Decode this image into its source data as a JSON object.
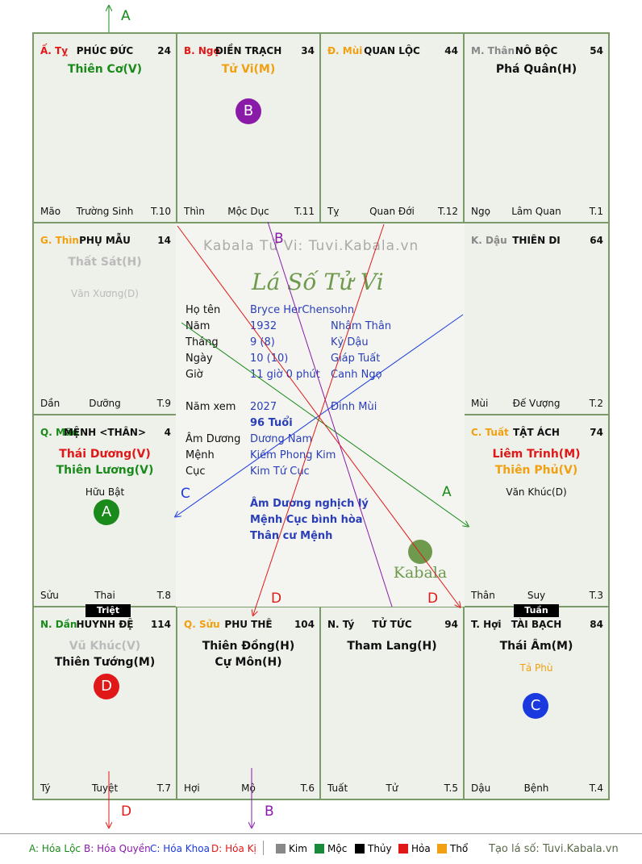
{
  "colors": {
    "hoa_loc": "#1a8a1a",
    "hoa_quyen": "#8a1aa8",
    "hoa_khoa": "#1a3ae0",
    "hoa_ki": "#e01818",
    "kim": "#888888",
    "moc": "#1a8a3a",
    "thuy": "#000000",
    "hoa": "#e01818",
    "tho": "#f0a010"
  },
  "watermark": "Kabala Tử Vi: Tuvi.Kabala.vn",
  "center_title": "Lá Số Tử Vi",
  "kabala_logo": "Kabala",
  "cells": [
    {
      "id": "ty",
      "branch": "Ấ. Tỵ",
      "branch_color": "#e01818",
      "name": "PHÚC ĐỨC",
      "age": "24",
      "stars": [
        {
          "text": "Thiên Cơ(V)",
          "color": "#1a8a1a"
        }
      ],
      "minors": [],
      "footer_left": "Mão",
      "footer_center": "Trường Sinh",
      "footer_right": "T.10"
    },
    {
      "id": "ngo",
      "branch": "B. Ngọ",
      "branch_color": "#e01818",
      "name": "ĐIỀN TRẠCH",
      "age": "34",
      "stars": [
        {
          "text": "Tử Vi(M)",
          "color": "#f0a010"
        }
      ],
      "minors": [],
      "footer_left": "Thìn",
      "footer_center": "Mộc Dục",
      "footer_right": "T.11"
    },
    {
      "id": "mui",
      "branch": "Đ. Mùi",
      "branch_color": "#f0a010",
      "name": "QUAN LỘC",
      "age": "44",
      "stars": [],
      "minors": [],
      "footer_left": "Tỵ",
      "footer_center": "Quan Đới",
      "footer_right": "T.12"
    },
    {
      "id": "than",
      "branch": "M. Thân",
      "branch_color": "#888888",
      "name": "NÔ BỘC",
      "age": "54",
      "stars": [
        {
          "text": "Phá Quân(H)",
          "color": "#111111"
        }
      ],
      "minors": [],
      "footer_left": "Ngọ",
      "footer_center": "Lâm Quan",
      "footer_right": "T.1"
    },
    {
      "id": "thin",
      "branch": "G. Thìn",
      "branch_color": "#f0a010",
      "name": "PHỤ MẪU",
      "age": "14",
      "stars": [
        {
          "text": "Thất Sát(H)",
          "color": "#bbbbbb"
        }
      ],
      "minors": [
        {
          "text": "Văn Xương(D)",
          "color": "#bbbbbb"
        }
      ],
      "footer_left": "Dần",
      "footer_center": "Dưỡng",
      "footer_right": "T.9"
    },
    {
      "id": "dau",
      "branch": "K. Dậu",
      "branch_color": "#888888",
      "name": "THIÊN DI",
      "age": "64",
      "stars": [],
      "minors": [],
      "footer_left": "Mùi",
      "footer_center": "Đế Vượng",
      "footer_right": "T.2"
    },
    {
      "id": "mao",
      "branch": "Q. Mão",
      "branch_color": "#1a8a1a",
      "name": "MỆNH <THÂN>",
      "age": "4",
      "stars": [
        {
          "text": "Thái Dương(V)",
          "color": "#e01818"
        },
        {
          "text": "Thiên Lương(V)",
          "color": "#1a8a1a"
        }
      ],
      "minors": [
        {
          "text": "Hữu Bật",
          "color": "#111111"
        }
      ],
      "footer_left": "Sửu",
      "footer_center": "Thai",
      "footer_right": "T.8"
    },
    {
      "id": "tuat",
      "branch": "C. Tuất",
      "branch_color": "#f0a010",
      "name": "TẬT ÁCH",
      "age": "74",
      "stars": [
        {
          "text": "Liêm Trinh(M)",
          "color": "#e01818"
        },
        {
          "text": "Thiên Phủ(V)",
          "color": "#f0a010"
        }
      ],
      "minors": [
        {
          "text": "Văn Khúc(D)",
          "color": "#111111"
        }
      ],
      "footer_left": "Thân",
      "footer_center": "Suy",
      "footer_right": "T.3"
    },
    {
      "id": "dan",
      "branch": "N. Dần",
      "branch_color": "#1a8a1a",
      "name": "HUYNH ĐỆ",
      "age": "114",
      "stars": [
        {
          "text": "Vũ Khúc(V)",
          "color": "#bbbbbb"
        },
        {
          "text": "Thiên Tướng(M)",
          "color": "#111111"
        }
      ],
      "minors": [],
      "footer_left": "Tý",
      "footer_center": "Tuyệt",
      "footer_right": "T.7"
    },
    {
      "id": "suu",
      "branch": "Q. Sửu",
      "branch_color": "#f0a010",
      "name": "PHU THÊ",
      "age": "104",
      "stars": [
        {
          "text": "Thiên Đồng(H)",
          "color": "#111111"
        },
        {
          "text": "Cự Môn(H)",
          "color": "#111111"
        }
      ],
      "minors": [],
      "footer_left": "Hợi",
      "footer_center": "Mộ",
      "footer_right": "T.6"
    },
    {
      "id": "tyrat",
      "branch": "N. Tý",
      "branch_color": "#111111",
      "name": "TỬ TỨC",
      "age": "94",
      "stars": [
        {
          "text": "Tham Lang(H)",
          "color": "#111111"
        }
      ],
      "minors": [],
      "footer_left": "Tuất",
      "footer_center": "Tử",
      "footer_right": "T.5"
    },
    {
      "id": "hoi",
      "branch": "T. Hợi",
      "branch_color": "#111111",
      "name": "TÀI BẠCH",
      "age": "84",
      "stars": [
        {
          "text": "Thái Âm(M)",
          "color": "#111111"
        }
      ],
      "minors": [
        {
          "text": "Tả Phù",
          "color": "#f0a010"
        }
      ],
      "footer_left": "Dậu",
      "footer_center": "Bệnh",
      "footer_right": "T.4"
    }
  ],
  "circles": [
    {
      "label": "B",
      "color": "#8a1aa8"
    },
    {
      "label": "A",
      "color": "#1a8a1a"
    },
    {
      "label": "D",
      "color": "#e01818"
    },
    {
      "label": "C",
      "color": "#1a3ae0"
    }
  ],
  "badges": {
    "triet": "Triệt",
    "tuan": "Tuần"
  },
  "info": {
    "ho_ten_label": "Họ tên",
    "ho_ten": "Bryce HerChensohn",
    "nam_label": "Năm",
    "nam": "1932",
    "nam_can": "Nhâm Thân",
    "thang_label": "Tháng",
    "thang": "9  (8)",
    "thang_can": "Kỷ Dậu",
    "ngay_label": "Ngày",
    "ngay": "10  (10)",
    "ngay_can": "Giáp Tuất",
    "gio_label": "Giờ",
    "gio": "11 giờ 0 phút",
    "gio_can": "Canh Ngọ",
    "nam_xem_label": "Năm xem",
    "nam_xem": "2027",
    "nam_xem_can": "Đinh Mùi",
    "tuoi": "96 Tuổi",
    "am_duong_label": "Âm Dương",
    "am_duong": "Dương Nam",
    "menh_label": "Mệnh",
    "menh": "Kiếm Phong Kim",
    "cuc_label": "Cục",
    "cuc": "Kim Tứ Cục",
    "note1": "Âm Dương nghịch lý",
    "note2": "Mệnh Cục bình hòa",
    "note3": "Thân cư Mệnh"
  },
  "arrow_labels": {
    "a": "A",
    "b": "B",
    "c": "C",
    "d": "D"
  },
  "legend": {
    "a": "A: Hóa Lộc",
    "b": "B: Hóa Quyền",
    "c": "C: Hóa Khoa",
    "d": "D: Hóa Kị",
    "kim": "Kim",
    "moc": "Mộc",
    "thuy": "Thủy",
    "hoa": "Hỏa",
    "tho": "Thổ",
    "site": "Tạo lá số: Tuvi.Kabala.vn"
  }
}
